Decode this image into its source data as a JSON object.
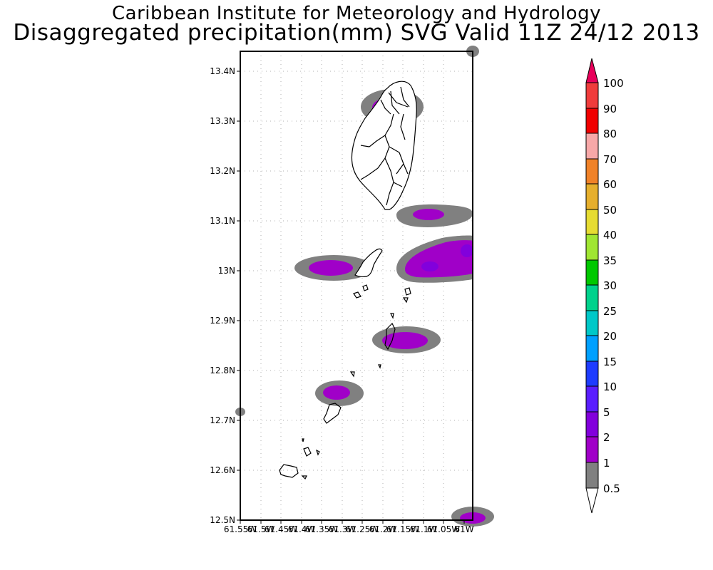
{
  "titles": {
    "line1": "Caribbean Institute for Meteorology and Hydrology",
    "line2": "Disaggregated precipitation(mm) SVG Valid 11Z 24/12 2013"
  },
  "axes": {
    "y_labels": [
      "13.4N",
      "13.3N",
      "13.2N",
      "13.1N",
      "13N",
      "12.9N",
      "12.8N",
      "12.7N",
      "12.6N",
      "12.5N"
    ],
    "x_labels": [
      "61.55W",
      "61.5W",
      "61.45W",
      "61.4W",
      "61.35W",
      "61.3W",
      "61.25W",
      "61.2W",
      "61.15W",
      "61.1W",
      "61.05W",
      "61W"
    ]
  },
  "colorbar": {
    "labels": [
      "100",
      "90",
      "80",
      "70",
      "60",
      "50",
      "40",
      "35",
      "30",
      "25",
      "20",
      "15",
      "10",
      "5",
      "2",
      "1",
      "0.5"
    ],
    "colors": [
      "#e8005a",
      "#f03c3c",
      "#f00000",
      "#f7a8a8",
      "#f08228",
      "#e6af2d",
      "#e6dc32",
      "#a0e632",
      "#00c800",
      "#00d28c",
      "#00c8c8",
      "#00a0ff",
      "#1e3cff",
      "#5a1eff",
      "#8200dc",
      "#a000c8",
      "#808080"
    ]
  },
  "chart_data": {
    "type": "heatmap",
    "title": "Disaggregated precipitation(mm) SVG Valid 11Z 24/12 2013",
    "xlabel": "",
    "ylabel": "",
    "xlim": [
      -61.55,
      -60.98
    ],
    "ylim": [
      12.5,
      13.44
    ],
    "color_levels_mm": [
      0.5,
      1,
      2,
      5,
      10,
      15,
      20,
      25,
      30,
      35,
      40,
      50,
      60,
      70,
      80,
      90,
      100
    ],
    "grid": true,
    "precip_cells": [
      {
        "lon": -61.18,
        "lat": 13.33,
        "max_mm": 2
      },
      {
        "lon": -61.1,
        "lat": 13.11,
        "max_mm": 2
      },
      {
        "lon": -61.04,
        "lat": 13.02,
        "max_mm": 5
      },
      {
        "lon": -61.33,
        "lat": 13.01,
        "max_mm": 2
      },
      {
        "lon": -61.17,
        "lat": 12.86,
        "max_mm": 2
      },
      {
        "lon": -61.31,
        "lat": 12.75,
        "max_mm": 2
      },
      {
        "lon": -61.0,
        "lat": 12.51,
        "max_mm": 2
      }
    ]
  }
}
